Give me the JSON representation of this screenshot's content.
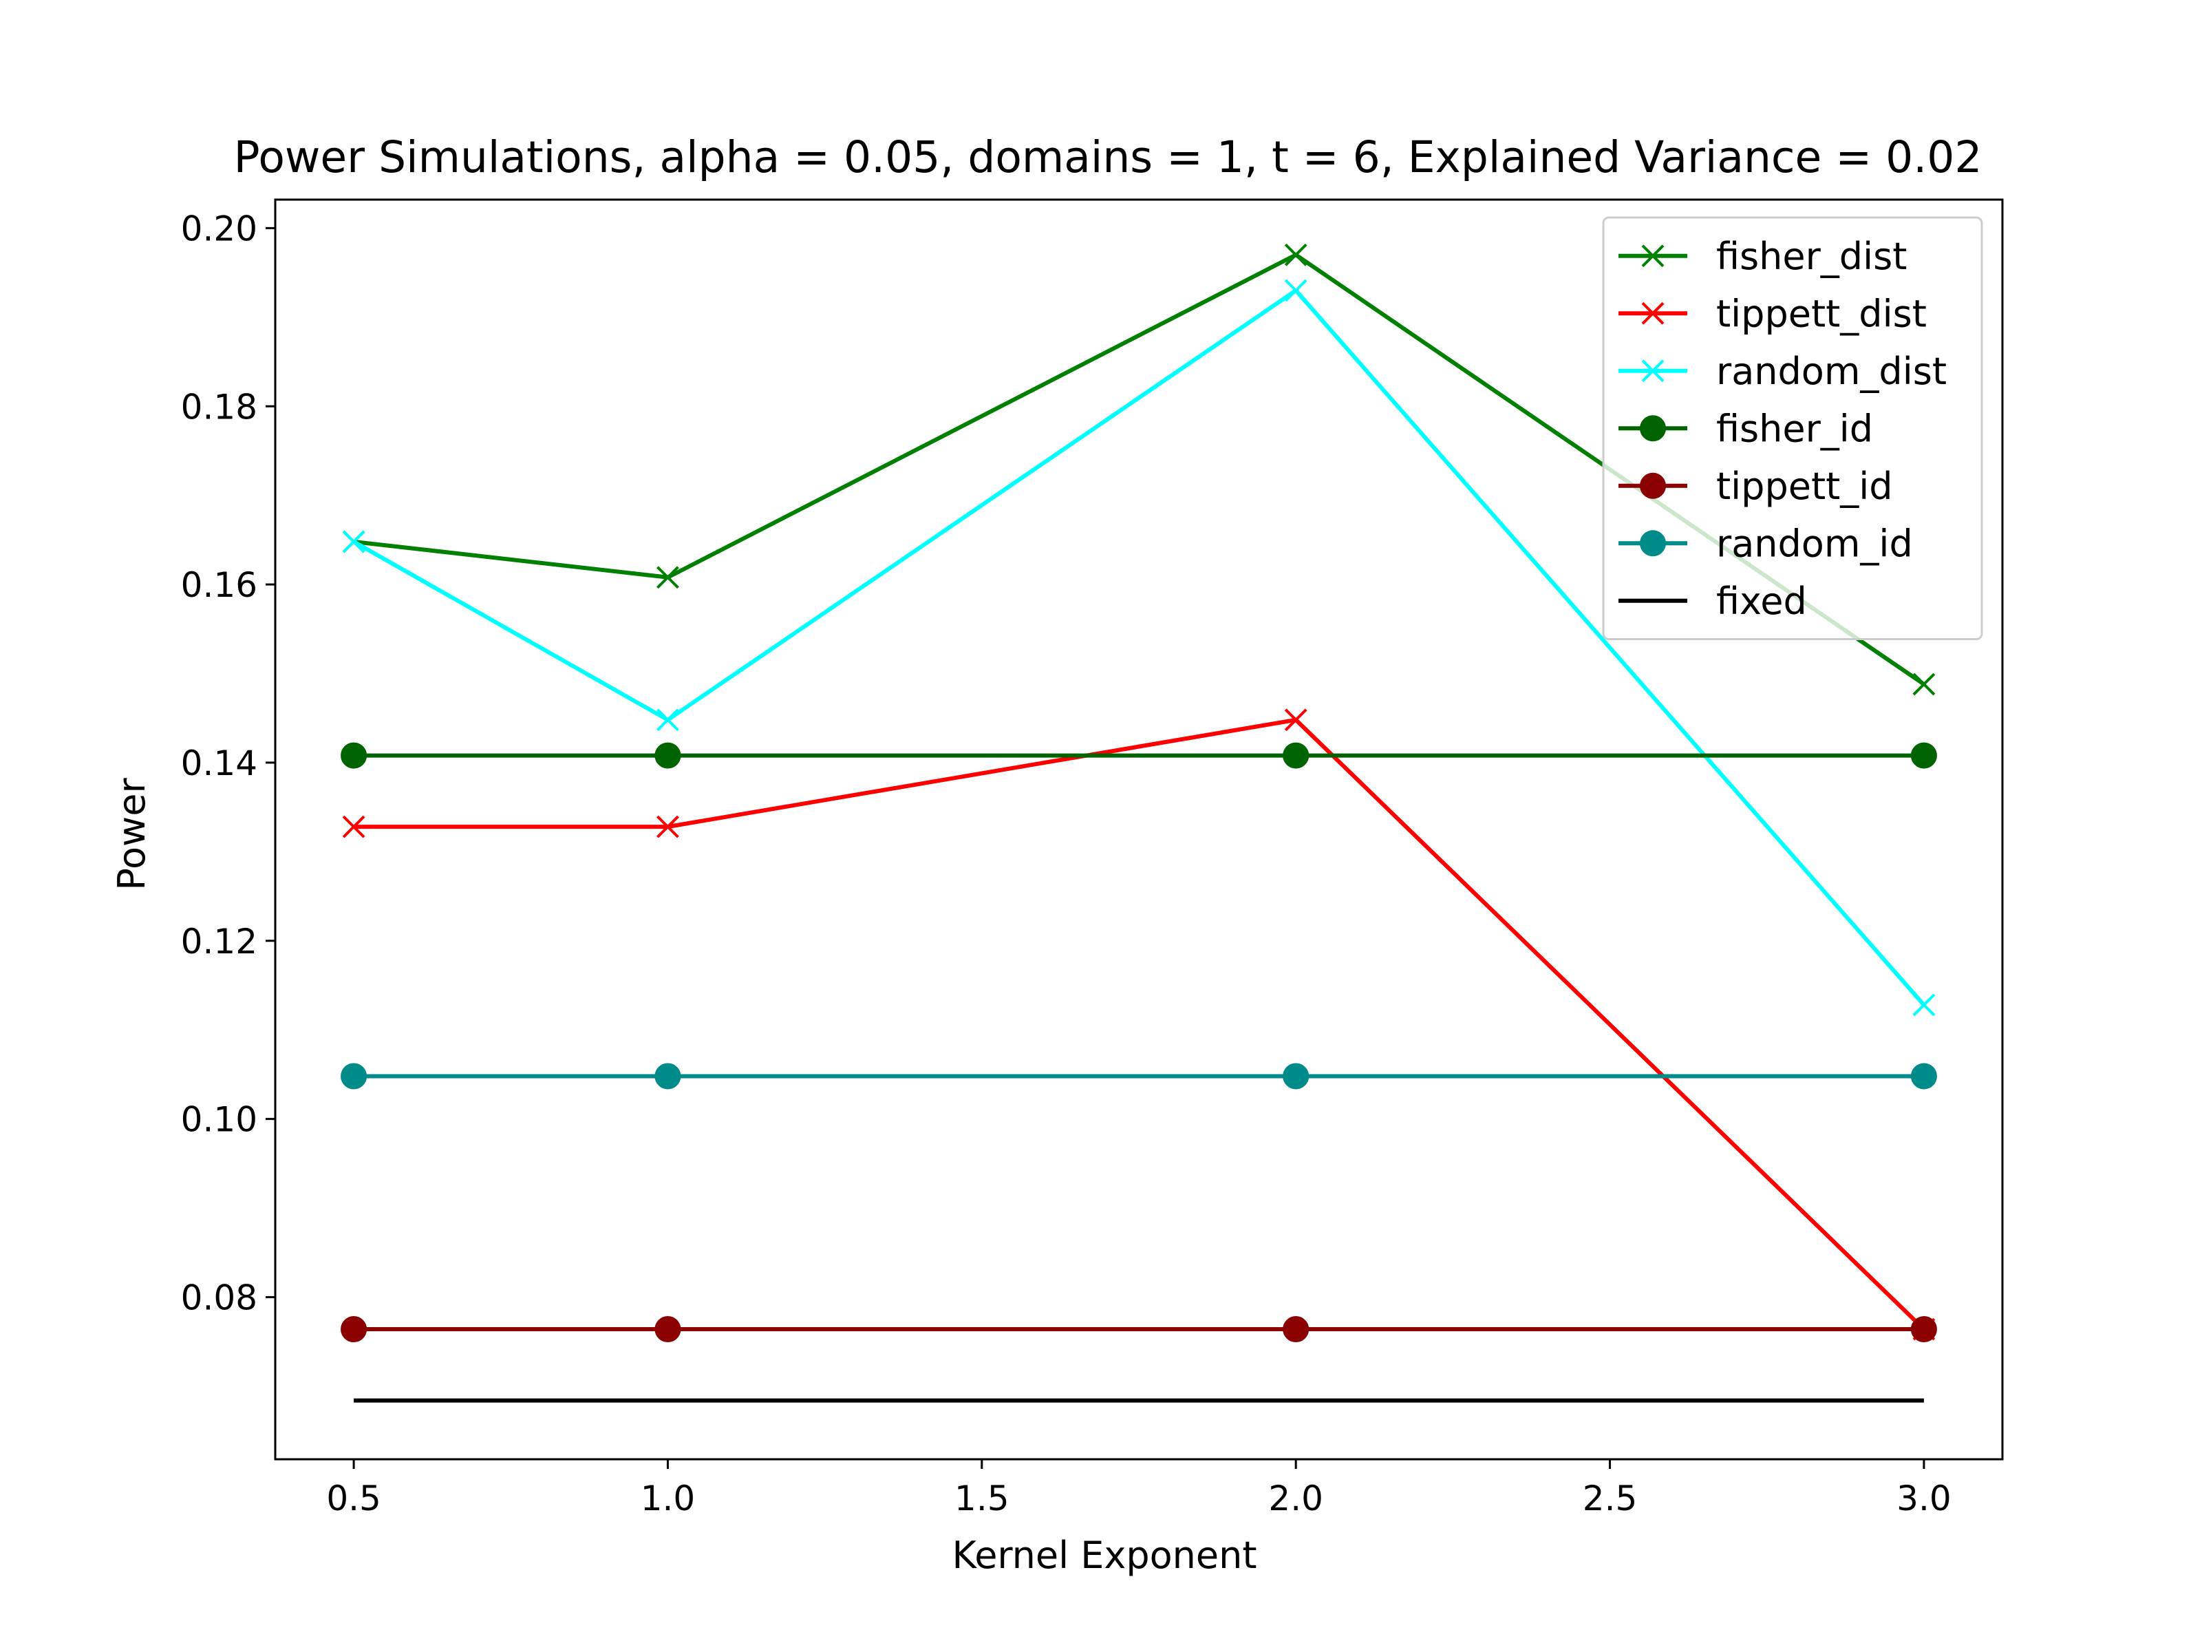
{
  "chart_data": {
    "type": "line",
    "title": "Power Simulations, alpha = 0.05, domains = 1, t = 6, Explained Variance = 0.02",
    "xlabel": "Kernel Exponent",
    "ylabel": "Power",
    "xlim": [
      0.375,
      3.125
    ],
    "ylim": [
      0.0618,
      0.2032
    ],
    "x_ticks": [
      "0.5",
      "1.0",
      "1.5",
      "2.0",
      "2.5",
      "3.0"
    ],
    "y_ticks": [
      "0.08",
      "0.10",
      "0.12",
      "0.14",
      "0.16",
      "0.18",
      "0.20"
    ],
    "x": [
      0.5,
      1.0,
      2.0,
      3.0
    ],
    "grid": false,
    "legend_position": "top-right",
    "series": [
      {
        "name": "fisher_dist",
        "values": [
          0.1648,
          0.1608,
          0.197,
          0.1488
        ],
        "color": "#008000",
        "marker": "x"
      },
      {
        "name": "tippett_dist",
        "values": [
          0.1328,
          0.1328,
          0.1448,
          0.0764
        ],
        "color": "#ff0000",
        "marker": "x"
      },
      {
        "name": "random_dist",
        "values": [
          0.1648,
          0.1448,
          0.193,
          0.1128
        ],
        "color": "#00ffff",
        "marker": "x"
      },
      {
        "name": "fisher_id",
        "values": [
          0.1408,
          0.1408,
          0.1408,
          0.1408
        ],
        "color": "#006400",
        "marker": "o"
      },
      {
        "name": "tippett_id",
        "values": [
          0.0764,
          0.0764,
          0.0764,
          0.0764
        ],
        "color": "#8b0000",
        "marker": "o"
      },
      {
        "name": "random_id",
        "values": [
          0.1048,
          0.1048,
          0.1048,
          0.1048
        ],
        "color": "#008b8b",
        "marker": "o"
      },
      {
        "name": "fixed",
        "values": [
          0.0684,
          0.0684,
          0.0684,
          0.0684
        ],
        "color": "#000000",
        "marker": "none"
      }
    ]
  }
}
